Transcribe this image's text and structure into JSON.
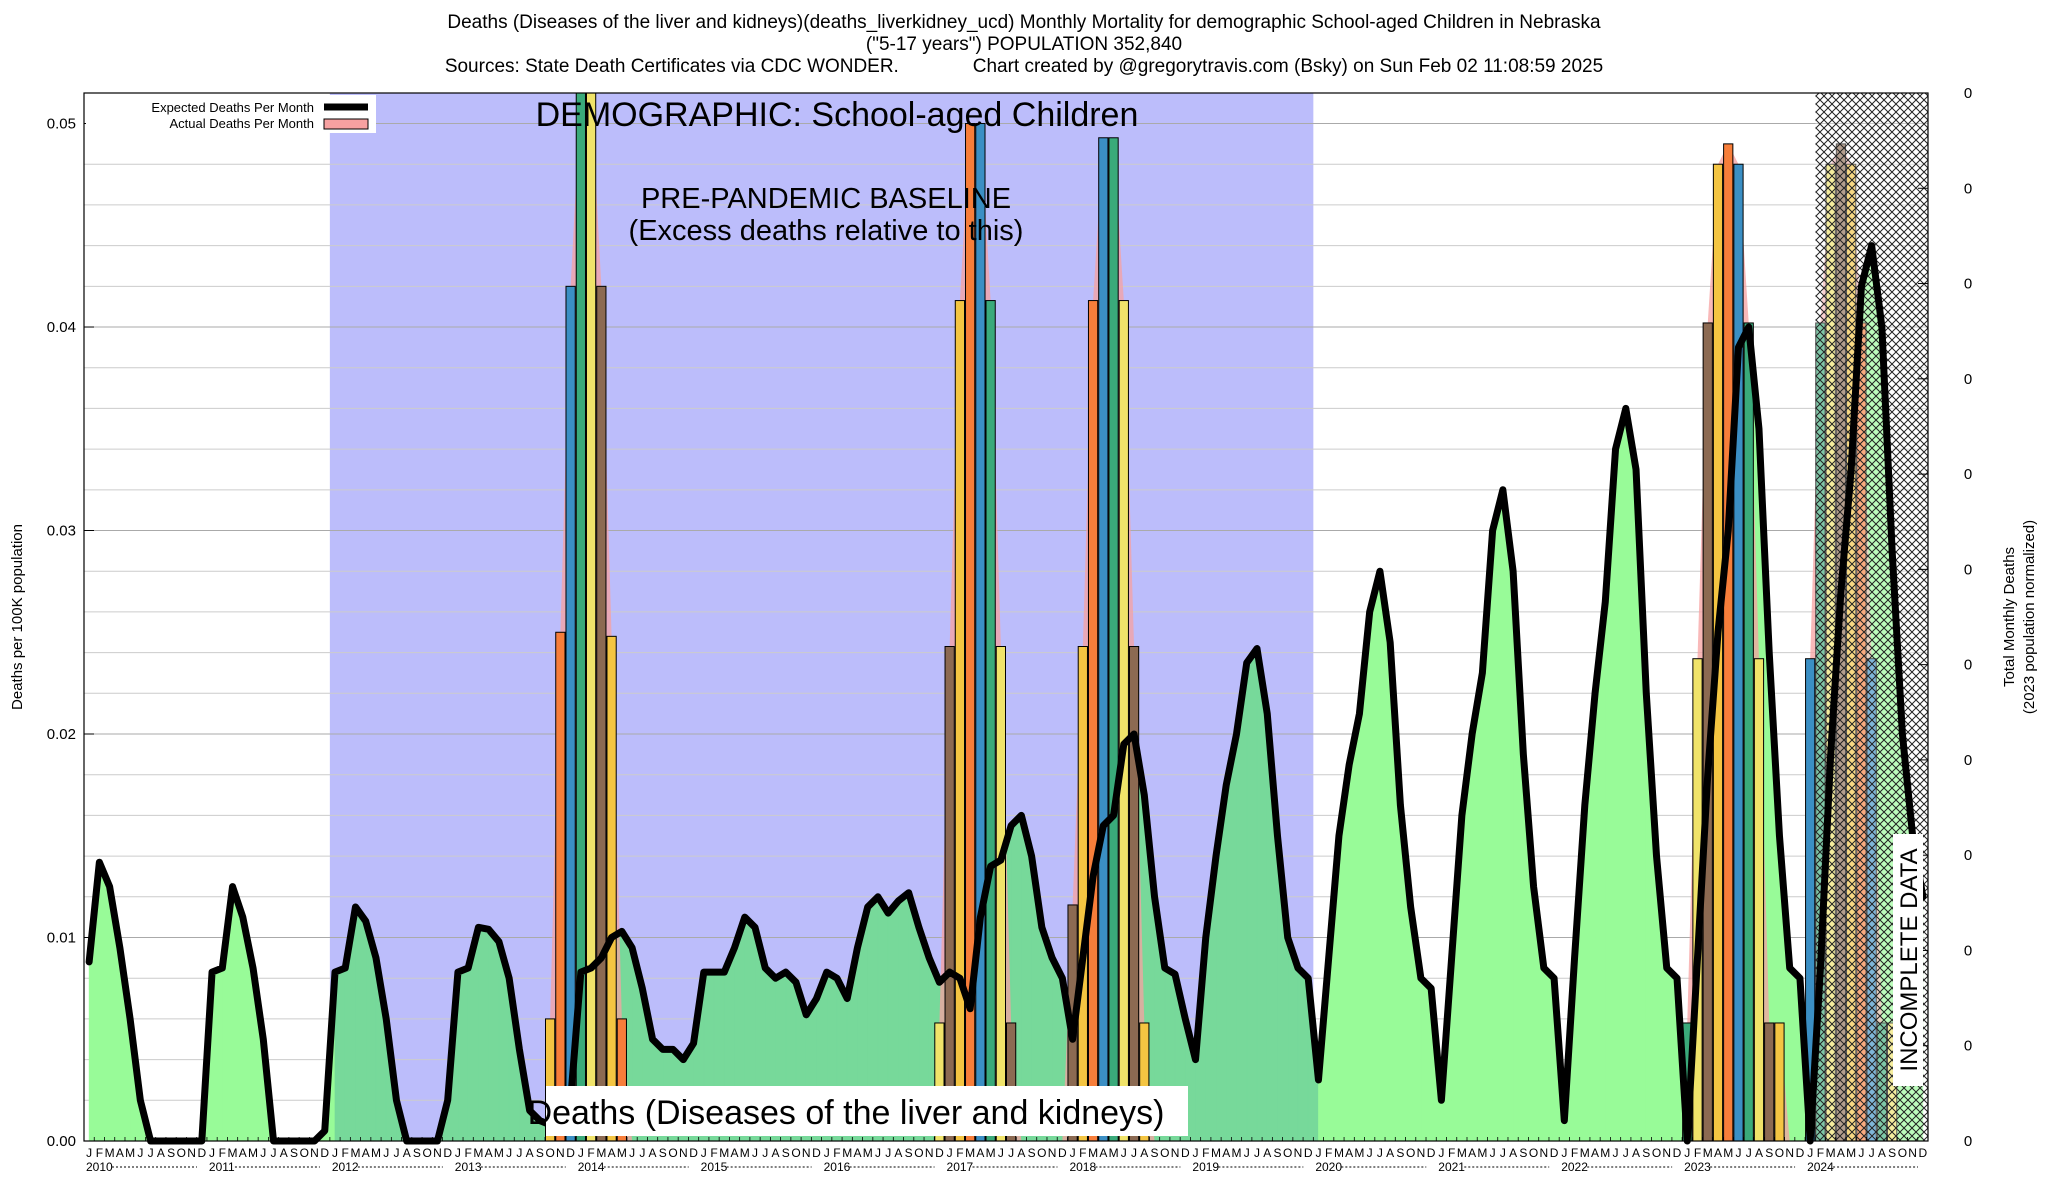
{
  "header": {
    "title_line1": "Deaths (Diseases of the liver and kidneys)(deaths_liverkidney_ucd) Monthly Mortality for demographic School-aged Children in Nebraska",
    "title_line2": "(\"5-17 years\") POPULATION 352,840",
    "title_line3": "Sources: State Death Certificates via CDC WONDER.              Chart created by @gregorytravis.com (Bsky) on Sun Feb 02 11:08:59 2025"
  },
  "chart_data": {
    "type": "area",
    "ylabel": "Deaths per 100K population",
    "y2label_line1": "Total Monthly Deaths",
    "y2label_line2": "(2023 population normalized)",
    "ylim": [
      0,
      0.0515
    ],
    "yticks": [
      "0.00",
      "0.01",
      "0.02",
      "0.03",
      "0.04",
      "0.05"
    ],
    "yticks_values": [
      0,
      0.01,
      0.02,
      0.03,
      0.04,
      0.05
    ],
    "y2ticks": [
      "0",
      "0",
      "0",
      "0",
      "0",
      "0",
      "0",
      "0",
      "0",
      "0",
      "0",
      "0"
    ],
    "x_start": "2010-01",
    "x_end": "2024-12",
    "month_letters": [
      "J",
      "F",
      "M",
      "A",
      "M",
      "J",
      "J",
      "A",
      "S",
      "O",
      "N",
      "D"
    ],
    "years": [
      "2010",
      "2011",
      "2012",
      "2013",
      "2014",
      "2015",
      "2016",
      "2017",
      "2018",
      "2019",
      "2020",
      "2021",
      "2022",
      "2023",
      "2024"
    ],
    "baseline_period": [
      "2012-01",
      "2019-12"
    ],
    "incomplete_period": [
      "2024-03",
      "2024-12"
    ],
    "annotations": {
      "demographic": "DEMOGRAPHIC: School-aged Children",
      "baseline_line1": "PRE-PANDEMIC BASELINE",
      "baseline_line2": "(Excess deaths relative to this)",
      "cause": "Deaths (Diseases of the liver and kidneys)",
      "incomplete": "INCOMPLETE DATA"
    },
    "legend": {
      "expected": "Expected Deaths Per Month",
      "actual": "Actual Deaths Per Month",
      "placement": "top-left"
    },
    "series": [
      {
        "name": "Expected Deaths Per Month",
        "x": [
          "2010-01",
          "2010-02",
          "2010-03",
          "2010-04",
          "2010-05",
          "2010-06",
          "2010-07",
          "2010-08",
          "2010-09",
          "2010-10",
          "2010-11",
          "2010-12",
          "2011-01",
          "2011-02",
          "2011-03",
          "2011-04",
          "2011-05",
          "2011-06",
          "2011-07",
          "2011-08",
          "2011-09",
          "2011-10",
          "2011-11",
          "2011-12",
          "2012-01",
          "2012-02",
          "2012-03",
          "2012-04",
          "2012-05",
          "2012-06",
          "2012-07",
          "2012-08",
          "2012-09",
          "2012-10",
          "2012-11",
          "2012-12",
          "2013-01",
          "2013-02",
          "2013-03",
          "2013-04",
          "2013-05",
          "2013-06",
          "2013-07",
          "2013-08",
          "2013-09",
          "2013-10",
          "2013-11",
          "2013-12",
          "2014-01",
          "2014-02",
          "2014-03",
          "2014-04",
          "2014-05",
          "2014-06",
          "2014-07",
          "2014-08",
          "2014-09",
          "2014-10",
          "2014-11",
          "2014-12",
          "2015-01",
          "2015-02",
          "2015-03",
          "2015-04",
          "2015-05",
          "2015-06",
          "2015-07",
          "2015-08",
          "2015-09",
          "2015-10",
          "2015-11",
          "2015-12",
          "2016-01",
          "2016-02",
          "2016-03",
          "2016-04",
          "2016-05",
          "2016-06",
          "2016-07",
          "2016-08",
          "2016-09",
          "2016-10",
          "2016-11",
          "2016-12",
          "2017-01",
          "2017-02",
          "2017-03",
          "2017-04",
          "2017-05",
          "2017-06",
          "2017-07",
          "2017-08",
          "2017-09",
          "2017-10",
          "2017-11",
          "2017-12",
          "2018-01",
          "2018-02",
          "2018-03",
          "2018-04",
          "2018-05",
          "2018-06",
          "2018-07",
          "2018-08",
          "2018-09",
          "2018-10",
          "2018-11",
          "2018-12",
          "2019-01",
          "2019-02",
          "2019-03",
          "2019-04",
          "2019-05",
          "2019-06",
          "2019-07",
          "2019-08",
          "2019-09",
          "2019-10",
          "2019-11",
          "2019-12",
          "2020-01",
          "2020-02",
          "2020-03",
          "2020-04",
          "2020-05",
          "2020-06",
          "2020-07",
          "2020-08",
          "2020-09",
          "2020-10",
          "2020-11",
          "2020-12",
          "2021-01",
          "2021-02",
          "2021-03",
          "2021-04",
          "2021-05",
          "2021-06",
          "2021-07",
          "2021-08",
          "2021-09",
          "2021-10",
          "2021-11",
          "2021-12",
          "2022-01",
          "2022-02",
          "2022-03",
          "2022-04",
          "2022-05",
          "2022-06",
          "2022-07",
          "2022-08",
          "2022-09",
          "2022-10",
          "2022-11",
          "2022-12",
          "2023-01",
          "2023-02",
          "2023-03",
          "2023-04",
          "2023-05",
          "2023-06",
          "2023-07",
          "2023-08",
          "2023-09",
          "2023-10",
          "2023-11",
          "2023-12",
          "2024-01",
          "2024-02",
          "2024-03",
          "2024-04",
          "2024-05",
          "2024-06",
          "2024-07",
          "2024-08",
          "2024-09",
          "2024-10",
          "2024-11",
          "2024-12"
        ],
        "values": [
          0.0088,
          0.0137,
          0.0125,
          0.0095,
          0.006,
          0.002,
          0.0,
          0.0,
          0.0,
          0.0,
          0.0,
          0.0,
          0.0083,
          0.0085,
          0.0125,
          0.011,
          0.0085,
          0.005,
          0.0,
          0.0,
          0.0,
          0.0,
          0.0,
          0.0005,
          0.0083,
          0.0085,
          0.0115,
          0.0108,
          0.009,
          0.006,
          0.002,
          0.0,
          0.0,
          0.0,
          0.0,
          0.002,
          0.0083,
          0.0085,
          0.0105,
          0.0104,
          0.0098,
          0.008,
          0.0045,
          0.0015,
          0.001,
          0.0008,
          0.001,
          0.002,
          0.0083,
          0.0085,
          0.009,
          0.01,
          0.0103,
          0.0095,
          0.0075,
          0.005,
          0.0045,
          0.0045,
          0.004,
          0.0048,
          0.0083,
          0.0083,
          0.0083,
          0.0095,
          0.011,
          0.0105,
          0.0085,
          0.008,
          0.0083,
          0.0078,
          0.0062,
          0.007,
          0.0083,
          0.008,
          0.007,
          0.0095,
          0.0115,
          0.012,
          0.0112,
          0.0118,
          0.0122,
          0.0105,
          0.009,
          0.0078,
          0.0083,
          0.008,
          0.0065,
          0.011,
          0.0135,
          0.0138,
          0.0155,
          0.016,
          0.014,
          0.0105,
          0.009,
          0.008,
          0.005,
          0.009,
          0.013,
          0.0155,
          0.016,
          0.0195,
          0.02,
          0.017,
          0.012,
          0.0085,
          0.0082,
          0.006,
          0.004,
          0.01,
          0.014,
          0.0175,
          0.02,
          0.0235,
          0.0242,
          0.021,
          0.015,
          0.01,
          0.0085,
          0.008,
          0.003,
          0.009,
          0.015,
          0.0185,
          0.021,
          0.026,
          0.028,
          0.0245,
          0.0165,
          0.0115,
          0.008,
          0.0075,
          0.002,
          0.009,
          0.016,
          0.02,
          0.023,
          0.03,
          0.032,
          0.028,
          0.019,
          0.0125,
          0.0085,
          0.008,
          0.001,
          0.009,
          0.0165,
          0.022,
          0.0265,
          0.034,
          0.036,
          0.033,
          0.022,
          0.014,
          0.0085,
          0.008,
          0.0,
          0.009,
          0.018,
          0.025,
          0.03,
          0.039,
          0.04,
          0.035,
          0.024,
          0.015,
          0.0085,
          0.008,
          0.0,
          0.0085,
          0.019,
          0.027,
          0.033,
          0.042,
          0.044,
          0.04,
          0.029,
          0.02,
          0.015,
          0.012
        ]
      },
      {
        "name": "Actual Deaths Per Month",
        "x": [
          "2013-10",
          "2013-11",
          "2013-12",
          "2014-01",
          "2014-02",
          "2014-03",
          "2014-04",
          "2014-05",
          "2014-06",
          "2014-07",
          "2016-12",
          "2017-01",
          "2017-02",
          "2017-03",
          "2017-04",
          "2017-05",
          "2017-06",
          "2017-07",
          "2017-08",
          "2017-09",
          "2017-10",
          "2017-11",
          "2017-12",
          "2018-01",
          "2018-02",
          "2018-03",
          "2018-04",
          "2018-05",
          "2018-06",
          "2018-07",
          "2018-08",
          "2018-09",
          "2018-10",
          "2023-01",
          "2023-02",
          "2023-03",
          "2023-04",
          "2023-05",
          "2023-06",
          "2023-07",
          "2023-08",
          "2023-09",
          "2023-10",
          "2023-11",
          "2024-01",
          "2024-02",
          "2024-03",
          "2024-04",
          "2024-05",
          "2024-06",
          "2024-07",
          "2024-08",
          "2024-09"
        ],
        "values": [
          0.006,
          0.025,
          0.042,
          0.053,
          0.053,
          0.042,
          0.0248,
          0.006,
          0.0,
          0.0,
          0.0058,
          0.0243,
          0.0413,
          0.05,
          0.05,
          0.0413,
          0.0243,
          0.0058,
          0.0,
          0.0,
          0.0,
          0.0,
          0.0,
          0.0116,
          0.0243,
          0.0413,
          0.0493,
          0.0493,
          0.0413,
          0.0243,
          0.0058,
          0.0,
          0.0,
          0.0058,
          0.0237,
          0.0402,
          0.048,
          0.049,
          0.048,
          0.0402,
          0.0237,
          0.0058,
          0.0058,
          0.0,
          0.0237,
          0.0402,
          0.048,
          0.049,
          0.048,
          0.0402,
          0.0237,
          0.0058,
          0.0058
        ]
      }
    ]
  }
}
